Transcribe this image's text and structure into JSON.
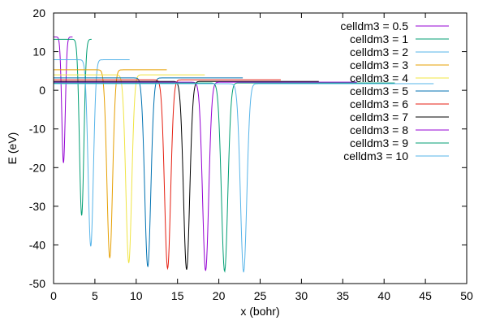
{
  "chart_data": {
    "type": "line",
    "title": "",
    "xlabel": "x (bohr)",
    "ylabel": "E (eV)",
    "xlim": [
      0,
      50
    ],
    "ylim": [
      -50,
      20
    ],
    "xticks": [
      0,
      5,
      10,
      15,
      20,
      25,
      30,
      35,
      40,
      45,
      50
    ],
    "yticks": [
      -50,
      -40,
      -30,
      -20,
      -10,
      0,
      10,
      20
    ],
    "grid": false,
    "legend_position": "top-right",
    "series": [
      {
        "name": "celldm3 = 0.5",
        "color": "#9400d3",
        "center": 1.2,
        "depth": -18.7,
        "baseline": 13.8,
        "xmax": 2.3,
        "width": 0.3
      },
      {
        "name": "celldm3 = 1",
        "color": "#009e73",
        "center": 3.4,
        "depth": -32.3,
        "baseline": 13.2,
        "xmax": 4.6,
        "width": 0.38
      },
      {
        "name": "celldm3 = 2",
        "color": "#56b4e9",
        "center": 4.5,
        "depth": -40.3,
        "baseline": 7.9,
        "xmax": 9.2,
        "width": 0.45
      },
      {
        "name": "celldm3 = 3",
        "color": "#e69f00",
        "center": 6.8,
        "depth": -43.3,
        "baseline": 5.3,
        "xmax": 13.7,
        "width": 0.48
      },
      {
        "name": "celldm3 = 4",
        "color": "#f0e442",
        "center": 9.1,
        "depth": -44.6,
        "baseline": 4.0,
        "xmax": 18.3,
        "width": 0.5
      },
      {
        "name": "celldm3 = 5",
        "color": "#0072b2",
        "center": 11.4,
        "depth": -45.6,
        "baseline": 3.2,
        "xmax": 22.9,
        "width": 0.52
      },
      {
        "name": "celldm3 = 6",
        "color": "#e51e10",
        "center": 13.8,
        "depth": -46.1,
        "baseline": 2.7,
        "xmax": 27.5,
        "width": 0.52
      },
      {
        "name": "celldm3 = 7",
        "color": "#000000",
        "center": 16.1,
        "depth": -46.4,
        "baseline": 2.3,
        "xmax": 32.1,
        "width": 0.53
      },
      {
        "name": "celldm3 = 8",
        "color": "#9400d3",
        "center": 18.4,
        "depth": -46.7,
        "baseline": 2.1,
        "xmax": 36.7,
        "width": 0.53
      },
      {
        "name": "celldm3 = 9",
        "color": "#009e73",
        "center": 20.7,
        "depth": -46.9,
        "baseline": 1.9,
        "xmax": 41.3,
        "width": 0.54
      },
      {
        "name": "celldm3 = 10",
        "color": "#56b4e9",
        "center": 23.0,
        "depth": -47.1,
        "baseline": 1.7,
        "xmax": 46.0,
        "width": 0.54
      }
    ]
  }
}
